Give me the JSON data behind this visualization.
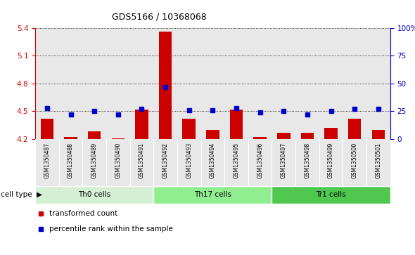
{
  "title": "GDS5166 / 10368068",
  "samples": [
    "GSM1350487",
    "GSM1350488",
    "GSM1350489",
    "GSM1350490",
    "GSM1350491",
    "GSM1350492",
    "GSM1350493",
    "GSM1350494",
    "GSM1350495",
    "GSM1350496",
    "GSM1350497",
    "GSM1350498",
    "GSM1350499",
    "GSM1350500",
    "GSM1350501"
  ],
  "transformed_count": [
    4.42,
    4.22,
    4.28,
    4.21,
    4.52,
    5.36,
    4.42,
    4.3,
    4.52,
    4.22,
    4.27,
    4.27,
    4.32,
    4.42,
    4.3
  ],
  "percentile_rank": [
    28,
    22,
    25,
    22,
    27,
    47,
    26,
    26,
    28,
    24,
    25,
    22,
    25,
    27,
    27
  ],
  "cell_types": [
    {
      "label": "Th0 cells",
      "start": 0,
      "end": 5,
      "color": "#d4f0d4"
    },
    {
      "label": "Th17 cells",
      "start": 5,
      "end": 10,
      "color": "#90ee90"
    },
    {
      "label": "Tr1 cells",
      "start": 10,
      "end": 15,
      "color": "#50c850"
    }
  ],
  "ylim_left": [
    4.2,
    5.4
  ],
  "ylim_right": [
    0,
    100
  ],
  "yticks_left": [
    4.2,
    4.5,
    4.8,
    5.1,
    5.4
  ],
  "yticks_right": [
    0,
    25,
    50,
    75,
    100
  ],
  "bar_color": "#cc0000",
  "dot_color": "#0000cc",
  "background_color": "#e8e8e8",
  "grid_color": "#000000",
  "legend_items": [
    {
      "label": "transformed count",
      "color": "#cc0000"
    },
    {
      "label": "percentile rank within the sample",
      "color": "#0000cc"
    }
  ]
}
